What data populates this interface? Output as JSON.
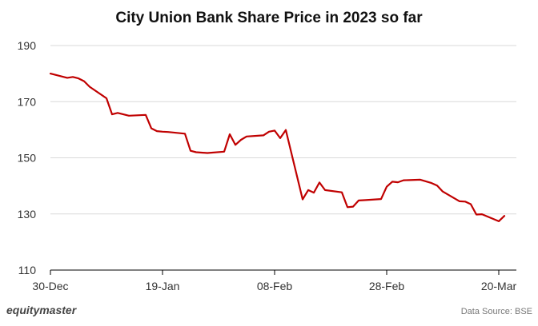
{
  "header": {
    "title": "City Union Bank Share Price in 2023 so far"
  },
  "footer": {
    "brand": "equitymaster",
    "source": "Data Source: BSE"
  },
  "colors": {
    "line": "#c00000",
    "grid": "#d9d9d9",
    "axis": "#000000"
  },
  "chart_data": {
    "type": "line",
    "title": "City Union Bank Share Price in 2023 so far",
    "xlabel": "",
    "ylabel": "",
    "ylim": [
      110,
      190
    ],
    "yticks": [
      110,
      130,
      150,
      170,
      190
    ],
    "xlim": [
      "2022-12-30",
      "2023-03-21"
    ],
    "xticks": [
      {
        "date": "2022-12-30",
        "label": "30-Dec"
      },
      {
        "date": "2023-01-19",
        "label": "19-Jan"
      },
      {
        "date": "2023-02-08",
        "label": "08-Feb"
      },
      {
        "date": "2023-02-28",
        "label": "28-Feb"
      },
      {
        "date": "2023-03-20",
        "label": "20-Mar"
      }
    ],
    "grid": "horizontal",
    "legend": "none",
    "series": [
      {
        "x": [
          "2022-12-30",
          "2023-01-02",
          "2023-01-03",
          "2023-01-04",
          "2023-01-05",
          "2023-01-06",
          "2023-01-09",
          "2023-01-10",
          "2023-01-11",
          "2023-01-12",
          "2023-01-13",
          "2023-01-16",
          "2023-01-17",
          "2023-01-18",
          "2023-01-19",
          "2023-01-20",
          "2023-01-23",
          "2023-01-24",
          "2023-01-25",
          "2023-01-27",
          "2023-01-30",
          "2023-01-31",
          "2023-02-01",
          "2023-02-02",
          "2023-02-03",
          "2023-02-06",
          "2023-02-07",
          "2023-02-08",
          "2023-02-09",
          "2023-02-10",
          "2023-02-13",
          "2023-02-14",
          "2023-02-15",
          "2023-02-16",
          "2023-02-17",
          "2023-02-20",
          "2023-02-21",
          "2023-02-22",
          "2023-02-23",
          "2023-02-24",
          "2023-02-27",
          "2023-02-28",
          "2023-03-01",
          "2023-03-02",
          "2023-03-03",
          "2023-03-06",
          "2023-03-08",
          "2023-03-09",
          "2023-03-10",
          "2023-03-13",
          "2023-03-14",
          "2023-03-15",
          "2023-03-16",
          "2023-03-17",
          "2023-03-20",
          "2023-03-21"
        ],
        "values": [
          180.0,
          178.5,
          178.8,
          178.3,
          177.3,
          175.3,
          171.2,
          165.5,
          166.0,
          165.5,
          165.0,
          165.3,
          160.5,
          159.5,
          159.3,
          159.2,
          158.6,
          152.5,
          152.0,
          151.7,
          152.2,
          158.4,
          154.6,
          156.4,
          157.6,
          158.0,
          159.3,
          159.7,
          157.0,
          159.9,
          135.2,
          138.5,
          137.6,
          141.2,
          138.5,
          137.7,
          132.4,
          132.6,
          134.8,
          134.9,
          135.3,
          139.7,
          141.5,
          141.3,
          142.0,
          142.2,
          141.0,
          140.1,
          138.0,
          134.5,
          134.4,
          133.5,
          129.8,
          129.9,
          127.4,
          129.3
        ]
      }
    ]
  }
}
